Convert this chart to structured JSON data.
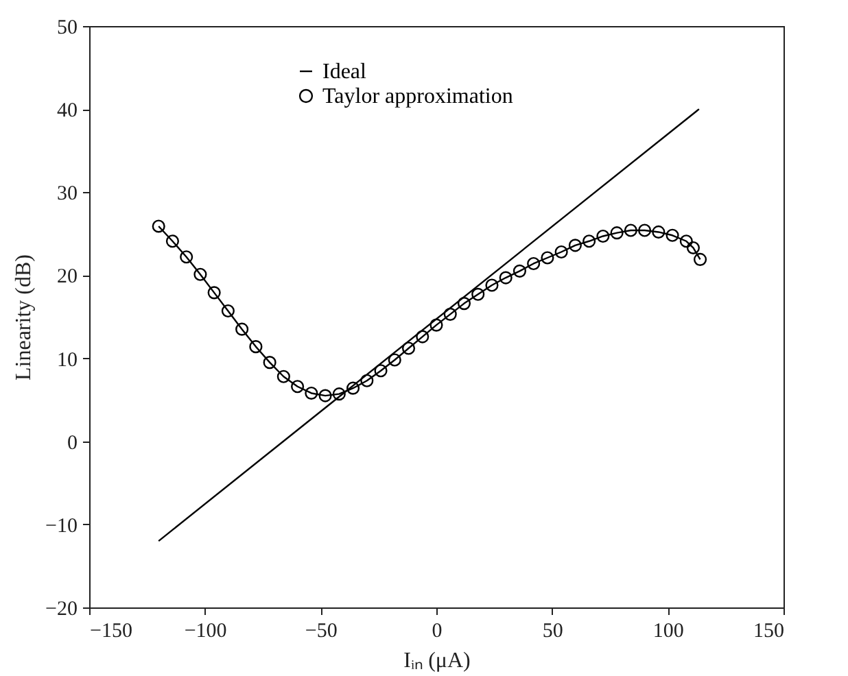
{
  "chart_data": {
    "type": "line",
    "xlabel": "Iᵢₙ (μA)",
    "ylabel": "Linearity (dB)",
    "xlim": [
      -150,
      150
    ],
    "xticks": [
      -150,
      -100,
      -50,
      0,
      50,
      100,
      150
    ],
    "ylim": [
      -20,
      50
    ],
    "yticks": [
      -20,
      -10,
      0,
      10,
      20,
      30,
      40,
      50
    ],
    "grid": false,
    "legend": "top",
    "line_style": "solid",
    "series": [
      {
        "name": "Ideal",
        "color": "#000000",
        "marker": "none",
        "x": [
          -120,
          113.5
        ],
        "values": [
          -12,
          40
        ]
      },
      {
        "name": "Taylor approximation",
        "color": "#000000",
        "marker": "circle",
        "x": [
          -120,
          -114,
          -108,
          -102,
          -96,
          -90,
          -84,
          -78,
          -72,
          -66,
          -60,
          -54,
          -48,
          -42,
          -36,
          -30,
          -24,
          -18,
          -12,
          -6,
          0,
          6,
          12,
          18,
          24,
          30,
          36,
          42,
          48,
          54,
          60,
          66,
          72,
          78,
          84,
          90,
          96,
          102,
          108,
          111,
          114
        ],
        "values": [
          25.9,
          24.1,
          22.2,
          20.1,
          17.9,
          15.7,
          13.5,
          11.4,
          9.5,
          7.8,
          6.6,
          5.8,
          5.5,
          5.7,
          6.4,
          7.3,
          8.5,
          9.8,
          11.2,
          12.6,
          14.0,
          15.3,
          16.6,
          17.7,
          18.8,
          19.7,
          20.5,
          21.4,
          22.1,
          22.8,
          23.6,
          24.1,
          24.7,
          25.1,
          25.4,
          25.4,
          25.2,
          24.8,
          24.1,
          23.3,
          21.9
        ]
      }
    ]
  }
}
